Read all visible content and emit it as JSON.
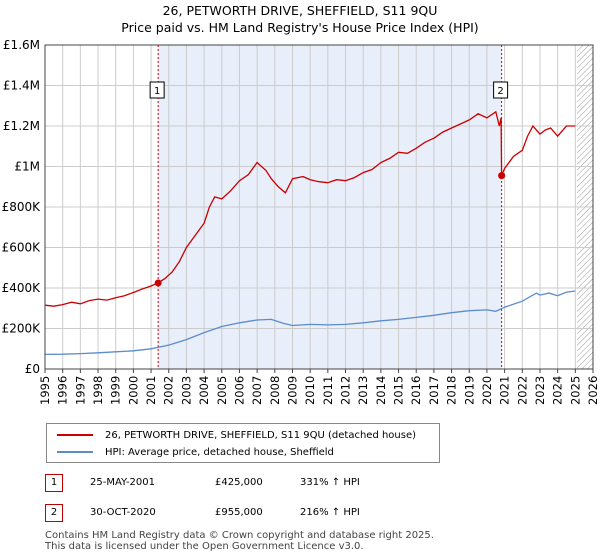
{
  "title": "26, PETWORTH DRIVE, SHEFFIELD, S11 9QU",
  "subtitle": "Price paid vs. HM Land Registry's House Price Index (HPI)",
  "legend": {
    "property": "26, PETWORTH DRIVE, SHEFFIELD, S11 9QU (detached house)",
    "hpi": "HPI: Average price, detached house, Sheffield"
  },
  "transactions": [
    {
      "n": "1",
      "date": "25-MAY-2001",
      "price": "£425,000",
      "hpi": "331% ↑ HPI"
    },
    {
      "n": "2",
      "date": "30-OCT-2020",
      "price": "£955,000",
      "hpi": "216% ↑ HPI"
    }
  ],
  "footer": {
    "line1": "Contains HM Land Registry data © Crown copyright and database right 2025.",
    "line2": "This data is licensed under the Open Government Licence v3.0."
  },
  "colors": {
    "property": "#cc0000",
    "hpi": "#5b8ccc",
    "shade": "#e8eefa",
    "grid": "#cccccc"
  },
  "chart_data": {
    "type": "line",
    "title": "26, PETWORTH DRIVE, SHEFFIELD, S11 9QU",
    "xlim": [
      1995,
      2026
    ],
    "ylim": [
      0,
      1600000
    ],
    "x_ticks": [
      "1995",
      "1996",
      "1997",
      "1998",
      "1999",
      "2000",
      "2001",
      "2002",
      "2003",
      "2004",
      "2005",
      "2006",
      "2007",
      "2008",
      "2009",
      "2010",
      "2011",
      "2012",
      "2013",
      "2014",
      "2015",
      "2016",
      "2017",
      "2018",
      "2019",
      "2020",
      "2021",
      "2022",
      "2023",
      "2024",
      "2025",
      "2026"
    ],
    "y_ticks": [
      {
        "v": 0,
        "label": "£0"
      },
      {
        "v": 200000,
        "label": "£200K"
      },
      {
        "v": 400000,
        "label": "£400K"
      },
      {
        "v": 600000,
        "label": "£600K"
      },
      {
        "v": 800000,
        "label": "£800K"
      },
      {
        "v": 1000000,
        "label": "£1M"
      },
      {
        "v": 1200000,
        "label": "£1.2M"
      },
      {
        "v": 1400000,
        "label": "£1.4M"
      },
      {
        "v": 1600000,
        "label": "£1.6M"
      }
    ],
    "shaded_region": [
      2001.4,
      2020.83
    ],
    "hatched_after": 2025.1,
    "sales": [
      {
        "label": "1",
        "x": 2001.4,
        "y": 425000
      },
      {
        "label": "2",
        "x": 2020.83,
        "y": 955000
      }
    ],
    "series": [
      {
        "name": "26, PETWORTH DRIVE, SHEFFIELD, S11 9QU (detached house)",
        "color": "#cc0000",
        "x": [
          1995,
          1995.5,
          1996,
          1996.5,
          1997,
          1997.5,
          1998,
          1998.5,
          1999,
          1999.5,
          2000,
          2000.5,
          2001,
          2001.4,
          2001.8,
          2002.2,
          2002.6,
          2003,
          2003.5,
          2004,
          2004.3,
          2004.6,
          2005,
          2005.5,
          2006,
          2006.5,
          2007,
          2007.5,
          2007.8,
          2008.2,
          2008.6,
          2009,
          2009.3,
          2009.6,
          2010,
          2010.5,
          2011,
          2011.5,
          2012,
          2012.5,
          2013,
          2013.5,
          2014,
          2014.5,
          2015,
          2015.5,
          2016,
          2016.5,
          2017,
          2017.5,
          2018,
          2018.5,
          2019,
          2019.5,
          2020,
          2020.5,
          2020.7,
          2020.8,
          2020.83,
          2021,
          2021.5,
          2022,
          2022.3,
          2022.6,
          2023,
          2023.3,
          2023.6,
          2024,
          2024.5,
          2025
        ],
        "y": [
          315000,
          310000,
          318000,
          330000,
          322000,
          338000,
          345000,
          340000,
          352000,
          362000,
          378000,
          395000,
          410000,
          425000,
          448000,
          480000,
          530000,
          600000,
          660000,
          720000,
          800000,
          850000,
          840000,
          880000,
          930000,
          960000,
          1020000,
          980000,
          940000,
          900000,
          870000,
          940000,
          945000,
          950000,
          935000,
          925000,
          920000,
          935000,
          930000,
          945000,
          970000,
          985000,
          1020000,
          1040000,
          1070000,
          1065000,
          1090000,
          1120000,
          1140000,
          1170000,
          1190000,
          1210000,
          1230000,
          1260000,
          1240000,
          1270000,
          1200000,
          1240000,
          955000,
          990000,
          1050000,
          1080000,
          1150000,
          1200000,
          1160000,
          1180000,
          1190000,
          1150000,
          1200000,
          1200000
        ]
      },
      {
        "name": "HPI: Average price, detached house, Sheffield",
        "color": "#5b8ccc",
        "x": [
          1995,
          1996,
          1997,
          1998,
          1999,
          2000,
          2001,
          2002,
          2003,
          2004,
          2005,
          2006,
          2007,
          2007.8,
          2008.5,
          2009,
          2010,
          2011,
          2012,
          2013,
          2014,
          2015,
          2016,
          2017,
          2018,
          2019,
          2020,
          2020.5,
          2021,
          2022,
          2022.8,
          2023,
          2023.5,
          2024,
          2024.5,
          2025
        ],
        "y": [
          72000,
          73000,
          76000,
          80000,
          85000,
          90000,
          100000,
          118000,
          145000,
          180000,
          210000,
          228000,
          242000,
          245000,
          225000,
          215000,
          220000,
          218000,
          220000,
          228000,
          238000,
          245000,
          255000,
          265000,
          278000,
          288000,
          292000,
          285000,
          305000,
          335000,
          375000,
          365000,
          375000,
          362000,
          380000,
          385000
        ]
      }
    ]
  }
}
